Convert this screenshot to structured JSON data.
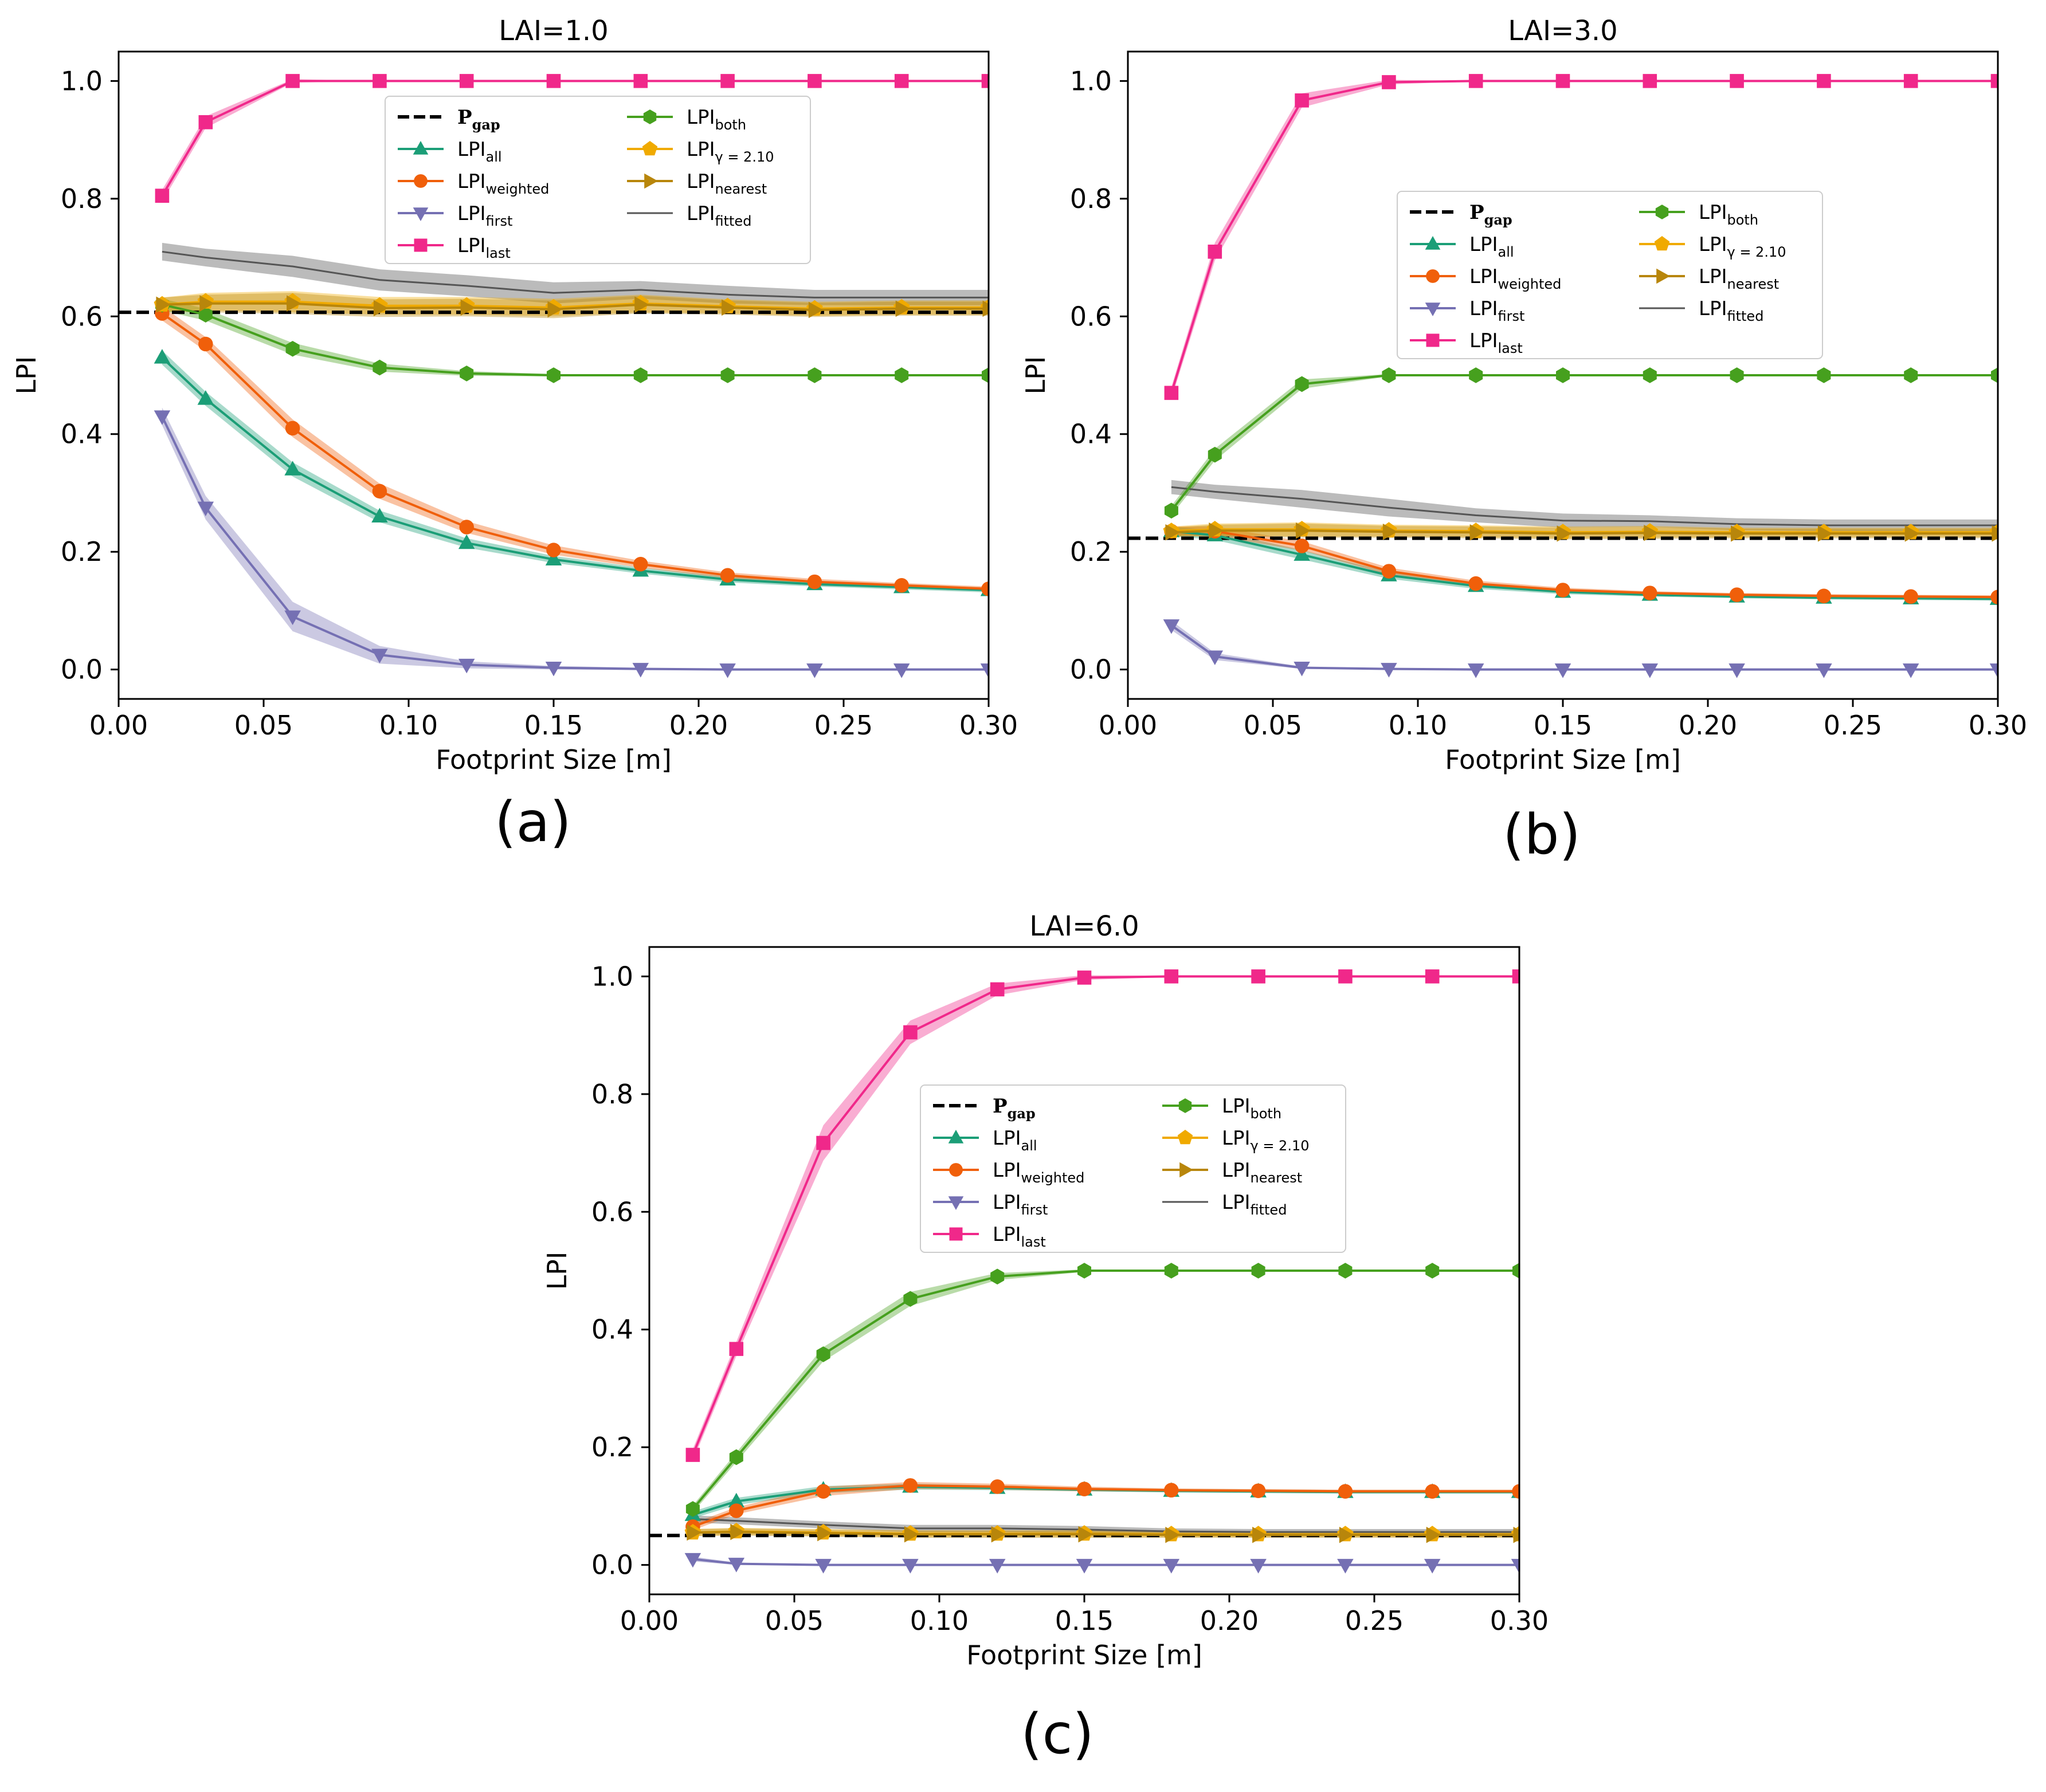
{
  "figure": {
    "panel_labels": [
      "(a)",
      "(b)",
      "(c)"
    ]
  },
  "legend": {
    "entries": [
      {
        "key": "pgap",
        "main": "P",
        "sub": "gap",
        "bold": true
      },
      {
        "key": "all",
        "main": "LPI",
        "sub": "all"
      },
      {
        "key": "weighted",
        "main": "LPI",
        "sub": "weighted"
      },
      {
        "key": "first",
        "main": "LPI",
        "sub": "first"
      },
      {
        "key": "last",
        "main": "LPI",
        "sub": "last"
      },
      {
        "key": "both",
        "main": "LPI",
        "sub": "both"
      },
      {
        "key": "gamma",
        "main": "LPI",
        "sub": "γ = 2.10"
      },
      {
        "key": "nearest",
        "main": "LPI",
        "sub": "nearest"
      },
      {
        "key": "fitted",
        "main": "LPI",
        "sub": "fitted"
      }
    ]
  },
  "styles": {
    "pgap": {
      "color": "#000000",
      "marker": "none",
      "dash": true
    },
    "all": {
      "color": "#1b9e77",
      "marker": "triangle-up"
    },
    "weighted": {
      "color": "#f05f0a",
      "marker": "circle"
    },
    "first": {
      "color": "#7570b3",
      "marker": "triangle-down"
    },
    "last": {
      "color": "#f0288a",
      "marker": "square"
    },
    "both": {
      "color": "#46a01e",
      "marker": "hexagon"
    },
    "gamma": {
      "color": "#f0aa00",
      "marker": "pentagon"
    },
    "nearest": {
      "color": "#b8860b",
      "marker": "triangle-right"
    },
    "fitted": {
      "color": "#555555",
      "marker": "none"
    }
  },
  "chart_data": [
    {
      "type": "line",
      "title": "LAI=1.0",
      "xlabel": "Footprint Size [m]",
      "ylabel": "LPI",
      "xlim": [
        0.0,
        0.3
      ],
      "ylim": [
        -0.05,
        1.05
      ],
      "xticks": [
        "0.00",
        "0.05",
        "0.10",
        "0.15",
        "0.20",
        "0.25",
        "0.30"
      ],
      "yticks": [
        "0.0",
        "0.2",
        "0.4",
        "0.6",
        "0.8",
        "1.0"
      ],
      "legend_position": "upper-center",
      "pgap": 0.607,
      "x": [
        0.015,
        0.03,
        0.06,
        0.09,
        0.12,
        0.15,
        0.18,
        0.21,
        0.24,
        0.27,
        0.3
      ],
      "series": [
        {
          "key": "all",
          "values": [
            0.53,
            0.46,
            0.34,
            0.26,
            0.215,
            0.187,
            0.168,
            0.153,
            0.145,
            0.14,
            0.135
          ],
          "band": [
            0.012,
            0.012,
            0.012,
            0.01,
            0.008,
            0.006,
            0.005,
            0.005,
            0.004,
            0.004,
            0.004
          ]
        },
        {
          "key": "weighted",
          "values": [
            0.605,
            0.553,
            0.41,
            0.303,
            0.242,
            0.203,
            0.179,
            0.16,
            0.149,
            0.143,
            0.137
          ],
          "band": [
            0.012,
            0.012,
            0.015,
            0.013,
            0.01,
            0.008,
            0.006,
            0.005,
            0.005,
            0.004,
            0.004
          ]
        },
        {
          "key": "first",
          "values": [
            0.43,
            0.275,
            0.09,
            0.025,
            0.008,
            0.003,
            0.001,
            0.0,
            0.0,
            0.0,
            0.0
          ],
          "band": [
            0.015,
            0.02,
            0.025,
            0.015,
            0.006,
            0.003,
            0.002,
            0.001,
            0.0,
            0.0,
            0.0
          ]
        },
        {
          "key": "last",
          "values": [
            0.805,
            0.93,
            1.0,
            1.0,
            1.0,
            1.0,
            1.0,
            1.0,
            1.0,
            1.0,
            1.0
          ],
          "band": [
            0.01,
            0.01,
            0.003,
            0.0,
            0.0,
            0.0,
            0.0,
            0.0,
            0.0,
            0.0,
            0.0
          ]
        },
        {
          "key": "both",
          "values": [
            0.62,
            0.603,
            0.545,
            0.513,
            0.503,
            0.5,
            0.5,
            0.5,
            0.5,
            0.5,
            0.5
          ],
          "band": [
            0.01,
            0.01,
            0.01,
            0.007,
            0.004,
            0.002,
            0.001,
            0.0,
            0.0,
            0.0,
            0.0
          ]
        },
        {
          "key": "gamma",
          "values": [
            0.62,
            0.625,
            0.625,
            0.618,
            0.618,
            0.615,
            0.622,
            0.617,
            0.613,
            0.615,
            0.615
          ],
          "band": [
            0.012,
            0.015,
            0.018,
            0.015,
            0.015,
            0.015,
            0.015,
            0.012,
            0.012,
            0.012,
            0.012
          ]
        },
        {
          "key": "nearest",
          "values": [
            0.62,
            0.622,
            0.622,
            0.614,
            0.615,
            0.612,
            0.62,
            0.615,
            0.611,
            0.613,
            0.613
          ],
          "band": [
            0.012,
            0.015,
            0.018,
            0.015,
            0.015,
            0.015,
            0.015,
            0.012,
            0.012,
            0.012,
            0.012
          ]
        },
        {
          "key": "fitted",
          "values": [
            0.71,
            0.7,
            0.685,
            0.662,
            0.652,
            0.64,
            0.645,
            0.637,
            0.632,
            0.632,
            0.632
          ],
          "band": [
            0.015,
            0.015,
            0.018,
            0.018,
            0.018,
            0.018,
            0.015,
            0.015,
            0.013,
            0.013,
            0.013
          ]
        }
      ]
    },
    {
      "type": "line",
      "title": "LAI=3.0",
      "xlabel": "Footprint Size [m]",
      "ylabel": "LPI",
      "xlim": [
        0.0,
        0.3
      ],
      "ylim": [
        -0.05,
        1.05
      ],
      "xticks": [
        "0.00",
        "0.05",
        "0.10",
        "0.15",
        "0.20",
        "0.25",
        "0.30"
      ],
      "yticks": [
        "0.0",
        "0.2",
        "0.4",
        "0.6",
        "0.8",
        "1.0"
      ],
      "legend_position": "center-right",
      "pgap": 0.223,
      "x": [
        0.015,
        0.03,
        0.06,
        0.09,
        0.12,
        0.15,
        0.18,
        0.21,
        0.24,
        0.27,
        0.3
      ],
      "series": [
        {
          "key": "all",
          "values": [
            0.235,
            0.228,
            0.195,
            0.16,
            0.142,
            0.132,
            0.127,
            0.124,
            0.122,
            0.121,
            0.12
          ],
          "band": [
            0.008,
            0.008,
            0.008,
            0.006,
            0.005,
            0.004,
            0.003,
            0.003,
            0.003,
            0.003,
            0.003
          ]
        },
        {
          "key": "weighted",
          "values": [
            0.235,
            0.235,
            0.21,
            0.167,
            0.146,
            0.135,
            0.13,
            0.127,
            0.125,
            0.124,
            0.123
          ],
          "band": [
            0.008,
            0.008,
            0.008,
            0.006,
            0.005,
            0.004,
            0.003,
            0.003,
            0.003,
            0.003,
            0.003
          ]
        },
        {
          "key": "first",
          "values": [
            0.075,
            0.022,
            0.003,
            0.001,
            0.0,
            0.0,
            0.0,
            0.0,
            0.0,
            0.0,
            0.0
          ],
          "band": [
            0.008,
            0.006,
            0.002,
            0.0,
            0.0,
            0.0,
            0.0,
            0.0,
            0.0,
            0.0,
            0.0
          ]
        },
        {
          "key": "last",
          "values": [
            0.47,
            0.71,
            0.967,
            0.998,
            1.0,
            1.0,
            1.0,
            1.0,
            1.0,
            1.0,
            1.0
          ],
          "band": [
            0.01,
            0.015,
            0.012,
            0.004,
            0.0,
            0.0,
            0.0,
            0.0,
            0.0,
            0.0,
            0.0
          ]
        },
        {
          "key": "both",
          "values": [
            0.27,
            0.365,
            0.485,
            0.5,
            0.5,
            0.5,
            0.5,
            0.5,
            0.5,
            0.5,
            0.5
          ],
          "band": [
            0.008,
            0.01,
            0.008,
            0.002,
            0.0,
            0.0,
            0.0,
            0.0,
            0.0,
            0.0,
            0.0
          ]
        },
        {
          "key": "gamma",
          "values": [
            0.235,
            0.238,
            0.238,
            0.236,
            0.235,
            0.233,
            0.234,
            0.233,
            0.233,
            0.233,
            0.233
          ],
          "band": [
            0.008,
            0.01,
            0.012,
            0.01,
            0.01,
            0.01,
            0.01,
            0.008,
            0.008,
            0.008,
            0.008
          ]
        },
        {
          "key": "nearest",
          "values": [
            0.233,
            0.236,
            0.236,
            0.234,
            0.233,
            0.231,
            0.232,
            0.231,
            0.231,
            0.231,
            0.231
          ],
          "band": [
            0.008,
            0.01,
            0.012,
            0.01,
            0.01,
            0.01,
            0.01,
            0.008,
            0.008,
            0.008,
            0.008
          ]
        },
        {
          "key": "fitted",
          "values": [
            0.31,
            0.302,
            0.29,
            0.275,
            0.262,
            0.253,
            0.252,
            0.247,
            0.245,
            0.245,
            0.245
          ],
          "band": [
            0.012,
            0.012,
            0.015,
            0.015,
            0.012,
            0.012,
            0.01,
            0.01,
            0.01,
            0.01,
            0.01
          ]
        }
      ]
    },
    {
      "type": "line",
      "title": "LAI=6.0",
      "xlabel": "Footprint Size [m]",
      "ylabel": "LPI",
      "xlim": [
        0.0,
        0.3
      ],
      "ylim": [
        -0.05,
        1.05
      ],
      "xticks": [
        "0.00",
        "0.05",
        "0.10",
        "0.15",
        "0.20",
        "0.25",
        "0.30"
      ],
      "yticks": [
        "0.0",
        "0.2",
        "0.4",
        "0.6",
        "0.8",
        "1.0"
      ],
      "legend_position": "center-right",
      "pgap": 0.05,
      "x": [
        0.015,
        0.03,
        0.06,
        0.09,
        0.12,
        0.15,
        0.18,
        0.21,
        0.24,
        0.27,
        0.3
      ],
      "series": [
        {
          "key": "all",
          "values": [
            0.085,
            0.108,
            0.128,
            0.133,
            0.131,
            0.128,
            0.126,
            0.125,
            0.124,
            0.124,
            0.124
          ],
          "band": [
            0.006,
            0.006,
            0.006,
            0.005,
            0.004,
            0.003,
            0.003,
            0.003,
            0.003,
            0.003,
            0.003
          ]
        },
        {
          "key": "weighted",
          "values": [
            0.065,
            0.092,
            0.125,
            0.135,
            0.133,
            0.129,
            0.127,
            0.126,
            0.125,
            0.125,
            0.125
          ],
          "band": [
            0.006,
            0.006,
            0.008,
            0.006,
            0.005,
            0.004,
            0.003,
            0.003,
            0.003,
            0.003,
            0.003
          ]
        },
        {
          "key": "first",
          "values": [
            0.01,
            0.002,
            0.0,
            0.0,
            0.0,
            0.0,
            0.0,
            0.0,
            0.0,
            0.0,
            0.0
          ],
          "band": [
            0.004,
            0.002,
            0.0,
            0.0,
            0.0,
            0.0,
            0.0,
            0.0,
            0.0,
            0.0,
            0.0
          ]
        },
        {
          "key": "last",
          "values": [
            0.187,
            0.367,
            0.717,
            0.905,
            0.978,
            0.998,
            1.0,
            1.0,
            1.0,
            1.0,
            1.0
          ],
          "band": [
            0.01,
            0.012,
            0.03,
            0.02,
            0.01,
            0.004,
            0.001,
            0.0,
            0.0,
            0.0,
            0.0
          ]
        },
        {
          "key": "both",
          "values": [
            0.095,
            0.183,
            0.358,
            0.452,
            0.49,
            0.5,
            0.5,
            0.5,
            0.5,
            0.5,
            0.5
          ],
          "band": [
            0.006,
            0.008,
            0.012,
            0.012,
            0.006,
            0.002,
            0.0,
            0.0,
            0.0,
            0.0,
            0.0
          ]
        },
        {
          "key": "gamma",
          "values": [
            0.055,
            0.057,
            0.055,
            0.053,
            0.053,
            0.053,
            0.052,
            0.052,
            0.052,
            0.052,
            0.052
          ],
          "band": [
            0.006,
            0.006,
            0.006,
            0.006,
            0.006,
            0.006,
            0.005,
            0.005,
            0.005,
            0.005,
            0.005
          ]
        },
        {
          "key": "nearest",
          "values": [
            0.055,
            0.056,
            0.054,
            0.052,
            0.052,
            0.052,
            0.051,
            0.051,
            0.051,
            0.051,
            0.051
          ],
          "band": [
            0.006,
            0.006,
            0.006,
            0.006,
            0.006,
            0.006,
            0.005,
            0.005,
            0.005,
            0.005,
            0.005
          ]
        },
        {
          "key": "fitted",
          "values": [
            0.078,
            0.075,
            0.068,
            0.062,
            0.062,
            0.06,
            0.057,
            0.056,
            0.056,
            0.056,
            0.056
          ],
          "band": [
            0.006,
            0.006,
            0.006,
            0.006,
            0.006,
            0.006,
            0.005,
            0.005,
            0.005,
            0.005,
            0.005
          ]
        }
      ]
    }
  ]
}
